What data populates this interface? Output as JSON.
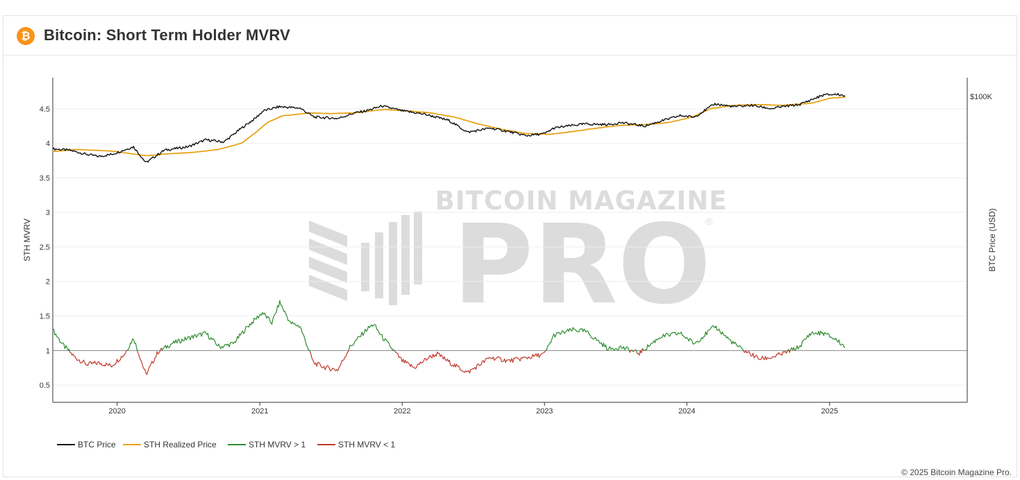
{
  "header": {
    "icon": "bitcoin-icon",
    "icon_glyph": "₿",
    "title": "Bitcoin: Short Term Holder MVRV"
  },
  "watermark": {
    "line1": "BITCOIN MAGAZINE",
    "line2": "PRO",
    "mark": "®"
  },
  "footer": {
    "copyright": "© 2025 Bitcoin Magazine Pro."
  },
  "colors": {
    "btc_price": "#111111",
    "realized": "#e8a317",
    "mvrv_up": "#2e8b2e",
    "mvrv_down": "#c0392b",
    "baseline": "#888888",
    "watermark": "#dcdcdc"
  },
  "chart_data": {
    "type": "line",
    "y_axis_left": {
      "label": "STH MVRV",
      "ticks": [
        0.5,
        1,
        1.5,
        2,
        2.5,
        3,
        3.5,
        4,
        4.5
      ],
      "tick_labels": [
        "0.5",
        "1",
        "1.5",
        "2",
        "2.5",
        "3",
        "3.5",
        "4",
        "4.5"
      ],
      "range": [
        0.25,
        4.95
      ]
    },
    "y_axis_right": {
      "label": "BTC Price (USD)",
      "tick_labels": [
        "$100K"
      ],
      "scale": "log"
    },
    "x_axis": {
      "tick_labels": [
        "2020",
        "2021",
        "2022",
        "2023",
        "2024",
        "2025"
      ],
      "range": [
        "2019-07-20",
        "2025-12-20"
      ]
    },
    "baseline_value": 1,
    "legend": [
      "BTC Price",
      "STH Realized Price",
      "STH MVRV > 1",
      "STH MVRV < 1"
    ],
    "series": [
      {
        "name": "BTC Price",
        "dates": [
          "2019-07-20",
          "2019-09-01",
          "2019-10-15",
          "2019-11-15",
          "2019-12-18",
          "2020-02-12",
          "2020-03-15",
          "2020-05-01",
          "2020-07-01",
          "2020-08-15",
          "2020-10-01",
          "2020-11-15",
          "2020-12-20",
          "2021-01-10",
          "2021-02-20",
          "2021-04-14",
          "2021-05-20",
          "2021-07-20",
          "2021-09-01",
          "2021-10-01",
          "2021-11-10",
          "2022-01-01",
          "2022-03-01",
          "2022-05-01",
          "2022-06-18",
          "2022-08-15",
          "2022-10-01",
          "2022-11-15",
          "2023-01-01",
          "2023-01-25",
          "2023-03-15",
          "2023-04-15",
          "2023-06-15",
          "2023-07-15",
          "2023-09-15",
          "2023-10-25",
          "2023-12-15",
          "2024-01-20",
          "2024-03-13",
          "2024-05-01",
          "2024-06-15",
          "2024-08-05",
          "2024-09-01",
          "2024-10-15",
          "2024-11-15",
          "2024-12-17",
          "2025-01-20",
          "2025-02-10"
        ],
        "values": [
          3.92,
          3.9,
          3.84,
          3.81,
          3.84,
          3.95,
          3.72,
          3.9,
          3.95,
          4.05,
          4.02,
          4.22,
          4.36,
          4.47,
          4.53,
          4.51,
          4.38,
          4.36,
          4.44,
          4.47,
          4.54,
          4.47,
          4.42,
          4.33,
          4.16,
          4.22,
          4.17,
          4.11,
          4.14,
          4.22,
          4.26,
          4.28,
          4.27,
          4.3,
          4.25,
          4.32,
          4.4,
          4.38,
          4.57,
          4.53,
          4.55,
          4.5,
          4.53,
          4.56,
          4.63,
          4.7,
          4.71,
          4.69
        ]
      },
      {
        "name": "STH Realized Price",
        "dates": [
          "2019-07-20",
          "2019-09-15",
          "2019-12-15",
          "2020-03-15",
          "2020-05-15",
          "2020-07-15",
          "2020-09-15",
          "2020-11-15",
          "2020-12-20",
          "2021-01-20",
          "2021-03-01",
          "2021-05-15",
          "2021-07-01",
          "2021-09-01",
          "2021-11-15",
          "2022-01-15",
          "2022-03-15",
          "2022-05-15",
          "2022-07-15",
          "2022-09-15",
          "2022-11-15",
          "2023-01-15",
          "2023-03-15",
          "2023-05-15",
          "2023-07-15",
          "2023-09-15",
          "2023-11-15",
          "2024-01-15",
          "2024-03-01",
          "2024-05-01",
          "2024-07-01",
          "2024-09-01",
          "2024-11-15",
          "2025-01-01",
          "2025-02-10"
        ],
        "values": [
          3.88,
          3.91,
          3.89,
          3.82,
          3.85,
          3.87,
          3.91,
          4.0,
          4.15,
          4.3,
          4.4,
          4.44,
          4.43,
          4.44,
          4.49,
          4.47,
          4.44,
          4.38,
          4.28,
          4.2,
          4.14,
          4.13,
          4.17,
          4.22,
          4.26,
          4.27,
          4.3,
          4.38,
          4.5,
          4.55,
          4.56,
          4.55,
          4.58,
          4.65,
          4.67
        ]
      },
      {
        "name": "STH MVRV",
        "dates": [
          "2019-07-20",
          "2019-08-15",
          "2019-09-15",
          "2019-10-15",
          "2019-11-15",
          "2019-12-18",
          "2020-01-20",
          "2020-02-12",
          "2020-03-15",
          "2020-04-15",
          "2020-05-20",
          "2020-07-01",
          "2020-08-15",
          "2020-09-20",
          "2020-10-25",
          "2020-12-01",
          "2021-01-08",
          "2021-02-01",
          "2021-02-21",
          "2021-03-20",
          "2021-04-14",
          "2021-05-19",
          "2021-06-20",
          "2021-07-20",
          "2021-08-20",
          "2021-09-06",
          "2021-10-01",
          "2021-10-20",
          "2021-11-10",
          "2022-01-01",
          "2022-02-01",
          "2022-03-10",
          "2022-04-01",
          "2022-05-10",
          "2022-06-18",
          "2022-08-15",
          "2022-10-01",
          "2022-11-21",
          "2023-01-01",
          "2023-01-25",
          "2023-03-15",
          "2023-04-15",
          "2023-06-15",
          "2023-07-15",
          "2023-09-01",
          "2023-10-25",
          "2023-12-15",
          "2024-01-20",
          "2024-03-13",
          "2024-04-20",
          "2024-05-20",
          "2024-07-05",
          "2024-08-05",
          "2024-09-01",
          "2024-10-15",
          "2024-11-13",
          "2024-12-17",
          "2025-01-20",
          "2025-02-10"
        ],
        "values": [
          1.3,
          1.08,
          0.9,
          0.8,
          0.82,
          0.78,
          0.95,
          1.18,
          0.65,
          0.98,
          1.1,
          1.18,
          1.25,
          1.05,
          1.1,
          1.35,
          1.55,
          1.4,
          1.7,
          1.4,
          1.35,
          0.82,
          0.75,
          0.72,
          1.05,
          1.15,
          1.3,
          1.38,
          1.2,
          0.85,
          0.75,
          0.9,
          0.95,
          0.8,
          0.68,
          0.9,
          0.85,
          0.9,
          0.95,
          1.22,
          1.3,
          1.28,
          1.02,
          1.05,
          0.96,
          1.2,
          1.25,
          1.1,
          1.35,
          1.15,
          1.02,
          0.88,
          0.9,
          0.95,
          1.05,
          1.25,
          1.25,
          1.15,
          1.05
        ]
      }
    ]
  }
}
